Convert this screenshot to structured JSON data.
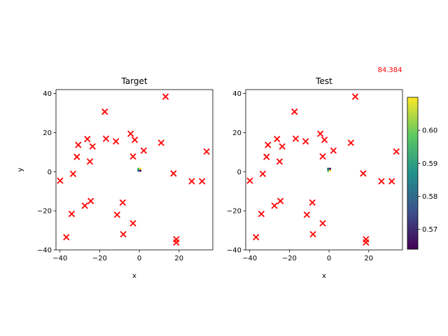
{
  "score_text": "84.384",
  "chart_data": [
    {
      "type": "scatter",
      "title": "Target",
      "xlabel": "x",
      "ylabel": "y",
      "xlim": [
        -42,
        37
      ],
      "ylim": [
        -40,
        42
      ],
      "xticks": [
        -40,
        -20,
        0,
        20
      ],
      "yticks": [
        -40,
        -20,
        0,
        20,
        40
      ],
      "marker": "x",
      "marker_color": "#ff0000",
      "points": [
        {
          "x": -39.9,
          "y": -4.6
        },
        {
          "x": -36.8,
          "y": -33.5
        },
        {
          "x": -34.1,
          "y": -21.6
        },
        {
          "x": -33.4,
          "y": -1.1
        },
        {
          "x": -31.5,
          "y": 7.6
        },
        {
          "x": -30.8,
          "y": 13.7
        },
        {
          "x": -27.5,
          "y": -17.4
        },
        {
          "x": -26.2,
          "y": 16.7
        },
        {
          "x": -24.9,
          "y": 5.2
        },
        {
          "x": -24.5,
          "y": -15.0
        },
        {
          "x": -23.6,
          "y": 12.9
        },
        {
          "x": -17.4,
          "y": 30.7
        },
        {
          "x": -16.8,
          "y": 16.9
        },
        {
          "x": -11.8,
          "y": 15.5
        },
        {
          "x": -11.2,
          "y": -22.0
        },
        {
          "x": -8.4,
          "y": -15.8
        },
        {
          "x": -8.1,
          "y": -32.0
        },
        {
          "x": -4.4,
          "y": 19.4
        },
        {
          "x": -3.2,
          "y": 7.8
        },
        {
          "x": -3.2,
          "y": -26.4
        },
        {
          "x": -2.3,
          "y": 16.3
        },
        {
          "x": 2.2,
          "y": 10.8
        },
        {
          "x": 11.0,
          "y": 14.8
        },
        {
          "x": 13.2,
          "y": 38.4
        },
        {
          "x": 17.2,
          "y": -0.9
        },
        {
          "x": 18.6,
          "y": -34.6
        },
        {
          "x": 18.6,
          "y": -36.2
        },
        {
          "x": 26.4,
          "y": -4.9
        },
        {
          "x": 31.6,
          "y": -4.9
        },
        {
          "x": 33.9,
          "y": 10.3
        }
      ],
      "image_patch": {
        "x": [
          -1,
          1
        ],
        "y": [
          0,
          2
        ],
        "colors": [
          "#35b779",
          "#fde725",
          "#31688e",
          "#440154"
        ]
      }
    },
    {
      "type": "scatter",
      "title": "Test",
      "xlabel": "x",
      "ylabel": "",
      "xlim": [
        -42,
        37
      ],
      "ylim": [
        -40,
        42
      ],
      "xticks": [
        -40,
        -20,
        0,
        20
      ],
      "yticks": [
        -40,
        -20,
        0,
        20,
        40
      ],
      "marker": "x",
      "marker_color": "#ff0000",
      "points": [
        {
          "x": -39.9,
          "y": -4.6
        },
        {
          "x": -36.8,
          "y": -33.5
        },
        {
          "x": -34.1,
          "y": -21.6
        },
        {
          "x": -33.4,
          "y": -1.1
        },
        {
          "x": -31.5,
          "y": 7.6
        },
        {
          "x": -30.8,
          "y": 13.7
        },
        {
          "x": -27.5,
          "y": -17.4
        },
        {
          "x": -26.2,
          "y": 16.7
        },
        {
          "x": -24.9,
          "y": 5.2
        },
        {
          "x": -24.5,
          "y": -15.0
        },
        {
          "x": -23.6,
          "y": 12.9
        },
        {
          "x": -17.4,
          "y": 30.7
        },
        {
          "x": -16.8,
          "y": 16.9
        },
        {
          "x": -11.8,
          "y": 15.5
        },
        {
          "x": -11.2,
          "y": -22.0
        },
        {
          "x": -8.4,
          "y": -15.8
        },
        {
          "x": -8.1,
          "y": -32.0
        },
        {
          "x": -4.4,
          "y": 19.4
        },
        {
          "x": -3.2,
          "y": 7.8
        },
        {
          "x": -3.2,
          "y": -26.4
        },
        {
          "x": -2.3,
          "y": 16.3
        },
        {
          "x": 2.2,
          "y": 10.8
        },
        {
          "x": 11.0,
          "y": 14.8
        },
        {
          "x": 13.2,
          "y": 38.4
        },
        {
          "x": 17.2,
          "y": -0.9
        },
        {
          "x": 18.6,
          "y": -34.6
        },
        {
          "x": 18.6,
          "y": -36.2
        },
        {
          "x": 26.4,
          "y": -4.9
        },
        {
          "x": 31.6,
          "y": -4.9
        },
        {
          "x": 33.9,
          "y": 10.3
        }
      ],
      "image_patch": {
        "x": [
          -1,
          1
        ],
        "y": [
          0,
          2
        ],
        "colors": [
          "#31688e",
          "#440154",
          "#35b779",
          "#fde725"
        ]
      }
    }
  ],
  "colorbar": {
    "cmap": "viridis",
    "range": [
      0.564,
      0.61
    ],
    "ticks": [
      0.57,
      0.58,
      0.59,
      0.6
    ],
    "tick_labels": [
      "0.57",
      "0.58",
      "0.59",
      "0.60"
    ],
    "stops": [
      "#440154",
      "#3b528b",
      "#21918c",
      "#5ec962",
      "#fde725"
    ]
  }
}
